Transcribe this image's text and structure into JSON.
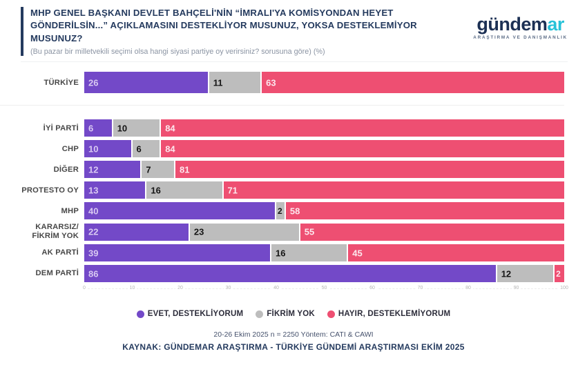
{
  "header": {
    "title": "MHP GENEL BAŞKANI DEVLET BAHÇELİ'NİN “İMRALI'YA KOMİSYONDAN HEYET GÖNDERİLSİN...” AÇIKLAMASINI DESTEKLİYOR MUSUNUZ, YOKSA DESTEKLEMİYOR MUSUNUZ?",
    "subtitle": "(Bu pazar bir milletvekili seçimi olsa hangi siyasi partiye oy verirsiniz? sorusuna göre) (%)"
  },
  "logo": {
    "text_primary": "gündem",
    "text_accent": "ar",
    "tagline": "ARAŞTIRMA VE DANIŞMANLIK"
  },
  "chart_data": {
    "type": "bar",
    "orientation": "horizontal",
    "stacked": true,
    "unit": "%",
    "categories": [
      "TÜRKİYE",
      "İYİ PARTİ",
      "CHP",
      "DİĞER",
      "PROTESTO OY",
      "MHP",
      "KARARSIZ/\nFİKRİM YOK",
      "AK PARTİ",
      "DEM PARTİ"
    ],
    "series": [
      {
        "name": "EVET, DESTEKLİYORUM",
        "color": "#7349c8",
        "values": [
          26,
          6,
          10,
          12,
          13,
          40,
          22,
          39,
          86
        ]
      },
      {
        "name": "FİKRİM YOK",
        "color": "#bdbdbd",
        "values": [
          11,
          10,
          6,
          7,
          16,
          2,
          23,
          16,
          12
        ]
      },
      {
        "name": "HAYIR, DESTEKLEMİYORUM",
        "color": "#ee4f72",
        "values": [
          63,
          84,
          84,
          81,
          71,
          58,
          55,
          45,
          2
        ]
      }
    ],
    "x_ticks": [
      0,
      10,
      20,
      30,
      40,
      50,
      60,
      70,
      80,
      90,
      100
    ],
    "xlim": [
      0,
      100
    ],
    "grid": "dashed-x",
    "legend_position": "bottom"
  },
  "footer": {
    "methodology": "20-26 Ekim 2025 n = 2250 Yöntem: CATI & CAWI",
    "source": "KAYNAK: GÜNDEMAR ARAŞTIRMA - TÜRKİYE GÜNDEMİ ARAŞTIRMASI EKİM 2025"
  },
  "colors": {
    "title_navy": "#243a5e",
    "subtitle_gray": "#8b94a3",
    "logo_navy": "#1c3054",
    "logo_cyan": "#27c2d8",
    "bar_purple": "#7349c8",
    "bar_gray": "#bdbdbd",
    "bar_pink": "#ee4f72"
  }
}
